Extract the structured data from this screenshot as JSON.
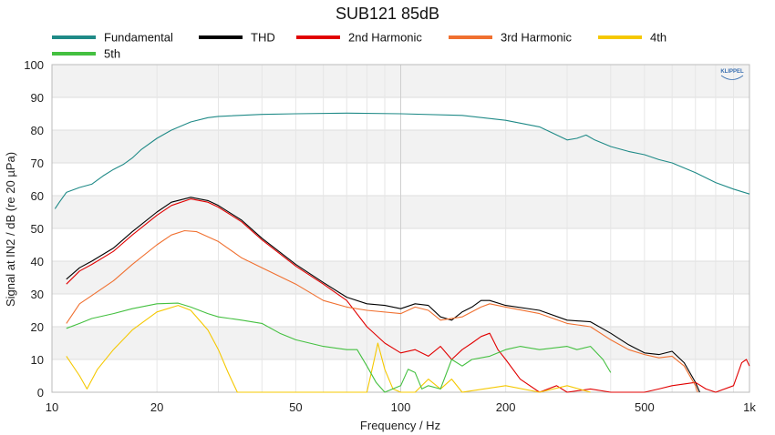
{
  "chart_data": {
    "type": "line",
    "title": "SUB121 85dB",
    "xlabel": "Frequency / Hz",
    "ylabel": "Signal at IN2 / dB (re 20 µPa)",
    "xscale": "log",
    "xlim": [
      10,
      1000
    ],
    "ylim": [
      0,
      100
    ],
    "x_ticks": [
      10,
      20,
      50,
      100,
      200,
      500,
      1000
    ],
    "x_tick_labels": [
      "10",
      "20",
      "50",
      "100",
      "200",
      "500",
      "1k"
    ],
    "y_ticks": [
      0,
      10,
      20,
      30,
      40,
      50,
      60,
      70,
      80,
      90,
      100
    ],
    "grid": "alternating horizontal bands",
    "legend_position": "top",
    "logo": "KLIPPEL",
    "series": [
      {
        "name": "Fundamental",
        "color": "#1f8a87",
        "points": [
          [
            10.2,
            56
          ],
          [
            10.5,
            58
          ],
          [
            11,
            61
          ],
          [
            12,
            62.5
          ],
          [
            13,
            63.5
          ],
          [
            14,
            66
          ],
          [
            15,
            68
          ],
          [
            16,
            69.5
          ],
          [
            17,
            71.5
          ],
          [
            18,
            74
          ],
          [
            20,
            77.5
          ],
          [
            22,
            80
          ],
          [
            25,
            82.5
          ],
          [
            28,
            83.8
          ],
          [
            30,
            84.2
          ],
          [
            40,
            84.8
          ],
          [
            50,
            85
          ],
          [
            70,
            85.2
          ],
          [
            100,
            85
          ],
          [
            150,
            84.5
          ],
          [
            200,
            83
          ],
          [
            250,
            81
          ],
          [
            300,
            77
          ],
          [
            320,
            77.5
          ],
          [
            340,
            78.5
          ],
          [
            360,
            77
          ],
          [
            400,
            75
          ],
          [
            450,
            73.5
          ],
          [
            500,
            72.5
          ],
          [
            550,
            71
          ],
          [
            600,
            70
          ],
          [
            700,
            67
          ],
          [
            800,
            64
          ],
          [
            900,
            62
          ],
          [
            1000,
            60.5
          ]
        ]
      },
      {
        "name": "THD",
        "color": "#000000",
        "points": [
          [
            11,
            34.5
          ],
          [
            12,
            38
          ],
          [
            13,
            40
          ],
          [
            15,
            44
          ],
          [
            17,
            49
          ],
          [
            20,
            55
          ],
          [
            22,
            58
          ],
          [
            25,
            59.5
          ],
          [
            28,
            58.5
          ],
          [
            30,
            57
          ],
          [
            35,
            52.5
          ],
          [
            40,
            47
          ],
          [
            50,
            39
          ],
          [
            60,
            33.5
          ],
          [
            70,
            29
          ],
          [
            80,
            27
          ],
          [
            90,
            26.5
          ],
          [
            100,
            25.5
          ],
          [
            110,
            27
          ],
          [
            120,
            26.5
          ],
          [
            130,
            23
          ],
          [
            140,
            22
          ],
          [
            150,
            24.5
          ],
          [
            160,
            26
          ],
          [
            170,
            28
          ],
          [
            180,
            28
          ],
          [
            200,
            26.5
          ],
          [
            250,
            25
          ],
          [
            300,
            22
          ],
          [
            350,
            21.5
          ],
          [
            400,
            18
          ],
          [
            450,
            14.5
          ],
          [
            500,
            12
          ],
          [
            550,
            11.5
          ],
          [
            600,
            12.5
          ],
          [
            650,
            9
          ],
          [
            700,
            3
          ],
          [
            720,
            0
          ]
        ]
      },
      {
        "name": "2nd Harmonic",
        "color": "#e10000",
        "points": [
          [
            11,
            33
          ],
          [
            12,
            37
          ],
          [
            13,
            39
          ],
          [
            15,
            43
          ],
          [
            17,
            48
          ],
          [
            20,
            54
          ],
          [
            22,
            57
          ],
          [
            25,
            59
          ],
          [
            28,
            58
          ],
          [
            30,
            56.5
          ],
          [
            35,
            52
          ],
          [
            40,
            46.5
          ],
          [
            50,
            38.5
          ],
          [
            60,
            33
          ],
          [
            70,
            28
          ],
          [
            80,
            20
          ],
          [
            90,
            15
          ],
          [
            100,
            12
          ],
          [
            110,
            13
          ],
          [
            120,
            11
          ],
          [
            130,
            14
          ],
          [
            140,
            10
          ],
          [
            150,
            13
          ],
          [
            160,
            15
          ],
          [
            170,
            17
          ],
          [
            180,
            18
          ],
          [
            190,
            13
          ],
          [
            200,
            10
          ],
          [
            220,
            4
          ],
          [
            250,
            0
          ],
          [
            280,
            2
          ],
          [
            300,
            0
          ],
          [
            350,
            1
          ],
          [
            400,
            0
          ],
          [
            500,
            0
          ],
          [
            550,
            1
          ],
          [
            600,
            2
          ],
          [
            700,
            3
          ],
          [
            750,
            1
          ],
          [
            800,
            0
          ],
          [
            900,
            2
          ],
          [
            950,
            9
          ],
          [
            980,
            10
          ],
          [
            1000,
            8
          ]
        ]
      },
      {
        "name": "3rd Harmonic",
        "color": "#f07030",
        "points": [
          [
            11,
            21
          ],
          [
            12,
            27
          ],
          [
            13,
            29.5
          ],
          [
            15,
            34
          ],
          [
            17,
            39
          ],
          [
            20,
            45
          ],
          [
            22,
            48
          ],
          [
            24,
            49.3
          ],
          [
            26,
            49
          ],
          [
            30,
            46
          ],
          [
            35,
            41
          ],
          [
            40,
            38
          ],
          [
            50,
            33
          ],
          [
            60,
            28
          ],
          [
            70,
            26
          ],
          [
            80,
            25
          ],
          [
            100,
            24
          ],
          [
            110,
            26
          ],
          [
            120,
            25
          ],
          [
            130,
            22
          ],
          [
            150,
            23
          ],
          [
            170,
            26
          ],
          [
            180,
            27
          ],
          [
            200,
            26
          ],
          [
            250,
            24
          ],
          [
            300,
            21
          ],
          [
            350,
            20
          ],
          [
            400,
            16
          ],
          [
            450,
            13
          ],
          [
            500,
            11.5
          ],
          [
            550,
            10.5
          ],
          [
            600,
            11
          ],
          [
            650,
            8
          ],
          [
            700,
            2
          ],
          [
            710,
            0
          ]
        ]
      },
      {
        "name": "4th",
        "color": "#f5c800",
        "points": [
          [
            11,
            11
          ],
          [
            12,
            5
          ],
          [
            12.6,
            1
          ],
          [
            13.5,
            7
          ],
          [
            15,
            13
          ],
          [
            17,
            19
          ],
          [
            20,
            24.5
          ],
          [
            23,
            26.5
          ],
          [
            25,
            25
          ],
          [
            28,
            19
          ],
          [
            30,
            13
          ],
          [
            32,
            6
          ],
          [
            34,
            0
          ],
          [
            38,
            0
          ],
          [
            80,
            0
          ],
          [
            84,
            10
          ],
          [
            86,
            15
          ],
          [
            90,
            7
          ],
          [
            95,
            1
          ],
          [
            100,
            0
          ],
          [
            110,
            0
          ],
          [
            120,
            4
          ],
          [
            130,
            1
          ],
          [
            140,
            4
          ],
          [
            150,
            0
          ],
          [
            200,
            2
          ],
          [
            250,
            0
          ],
          [
            300,
            2
          ],
          [
            350,
            0
          ]
        ]
      },
      {
        "name": "5th",
        "color": "#44c040",
        "points": [
          [
            11,
            19.5
          ],
          [
            12,
            21
          ],
          [
            13,
            22.5
          ],
          [
            15,
            24
          ],
          [
            17,
            25.5
          ],
          [
            20,
            27
          ],
          [
            23,
            27.2
          ],
          [
            25,
            26
          ],
          [
            28,
            24
          ],
          [
            30,
            23
          ],
          [
            35,
            22
          ],
          [
            40,
            21
          ],
          [
            45,
            18
          ],
          [
            50,
            16
          ],
          [
            60,
            14
          ],
          [
            70,
            13
          ],
          [
            75,
            13
          ],
          [
            80,
            8
          ],
          [
            85,
            3
          ],
          [
            90,
            0
          ],
          [
            100,
            2
          ],
          [
            105,
            7
          ],
          [
            110,
            6
          ],
          [
            115,
            1
          ],
          [
            120,
            2
          ],
          [
            130,
            1
          ],
          [
            140,
            10
          ],
          [
            150,
            8
          ],
          [
            160,
            10
          ],
          [
            180,
            11
          ],
          [
            200,
            13
          ],
          [
            220,
            14
          ],
          [
            250,
            13
          ],
          [
            300,
            14
          ],
          [
            320,
            13
          ],
          [
            350,
            14
          ],
          [
            380,
            10
          ],
          [
            400,
            6
          ]
        ]
      }
    ]
  }
}
